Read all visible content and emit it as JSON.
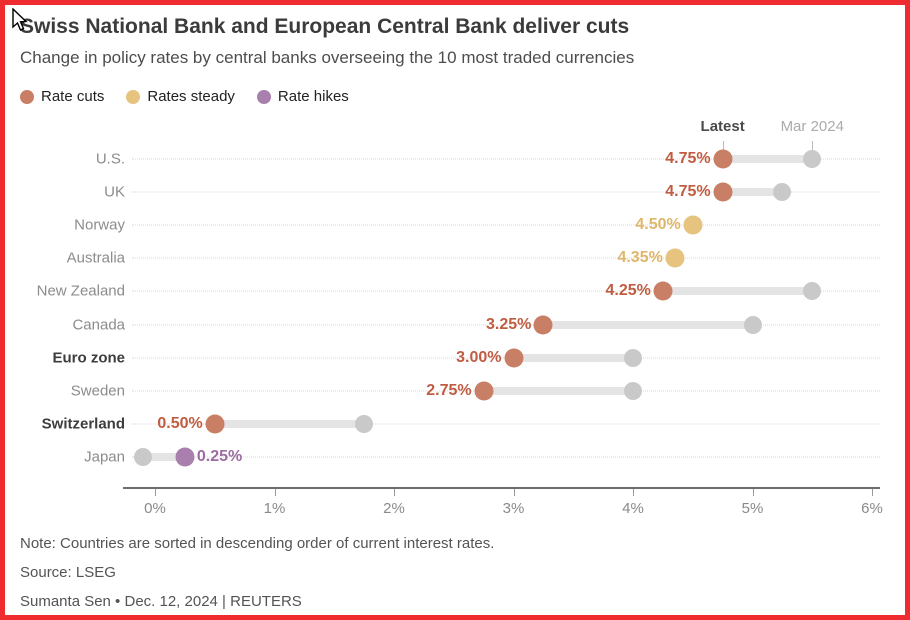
{
  "header": {
    "title": "Swiss National Bank and European Central Bank deliver cuts",
    "subtitle": "Change in policy rates by central banks overseeing the 10 most traded currencies"
  },
  "legend": [
    {
      "name": "rate-cuts-swatch",
      "label": "Rate cuts",
      "color": "#c97e66"
    },
    {
      "name": "rates-steady-swatch",
      "label": "Rates steady",
      "color": "#e6c480"
    },
    {
      "name": "rate-hikes-swatch",
      "label": "Rate hikes",
      "color": "#a97fad"
    }
  ],
  "chart_data": {
    "type": "dumbbell",
    "title": "Swiss National Bank and European Central Bank deliver cuts",
    "subtitle": "Change in policy rates by central banks overseeing the 10 most traded currencies",
    "col_headers": {
      "latest": "Latest",
      "previous": "Mar 2024"
    },
    "x_ticks": [
      "0%",
      "1%",
      "2%",
      "3%",
      "4%",
      "5%",
      "6%"
    ],
    "x_tick_values": [
      0,
      1,
      2,
      3,
      4,
      5,
      6
    ],
    "x_range": [
      0,
      6
    ],
    "grid": "dotted-horizontal",
    "legend_position": "top-left",
    "categories": [
      "U.S.",
      "UK",
      "Norway",
      "Australia",
      "New Zealand",
      "Canada",
      "Euro zone",
      "Sweden",
      "Switzerland",
      "Japan"
    ],
    "series": [
      {
        "name": "Latest",
        "values": [
          4.75,
          4.75,
          4.5,
          4.35,
          4.25,
          3.25,
          3.0,
          2.75,
          0.5,
          0.25
        ]
      },
      {
        "name": "Mar 2024",
        "values": [
          5.5,
          5.25,
          4.5,
          4.35,
          5.5,
          5.0,
          4.0,
          4.0,
          1.75,
          -0.1
        ]
      }
    ],
    "rows": [
      {
        "country": "U.S.",
        "bold": false,
        "latest": 4.75,
        "mar2024": 5.5,
        "status": "cut",
        "value_label": "4.75%",
        "label_side": "left"
      },
      {
        "country": "UK",
        "bold": false,
        "latest": 4.75,
        "mar2024": 5.25,
        "status": "cut",
        "value_label": "4.75%",
        "label_side": "left"
      },
      {
        "country": "Norway",
        "bold": false,
        "latest": 4.5,
        "mar2024": 4.5,
        "status": "steady",
        "value_label": "4.50%",
        "label_side": "left"
      },
      {
        "country": "Australia",
        "bold": false,
        "latest": 4.35,
        "mar2024": 4.35,
        "status": "steady",
        "value_label": "4.35%",
        "label_side": "left"
      },
      {
        "country": "New Zealand",
        "bold": false,
        "latest": 4.25,
        "mar2024": 5.5,
        "status": "cut",
        "value_label": "4.25%",
        "label_side": "left"
      },
      {
        "country": "Canada",
        "bold": false,
        "latest": 3.25,
        "mar2024": 5.0,
        "status": "cut",
        "value_label": "3.25%",
        "label_side": "left"
      },
      {
        "country": "Euro zone",
        "bold": true,
        "latest": 3.0,
        "mar2024": 4.0,
        "status": "cut",
        "value_label": "3.00%",
        "label_side": "left"
      },
      {
        "country": "Sweden",
        "bold": false,
        "latest": 2.75,
        "mar2024": 4.0,
        "status": "cut",
        "value_label": "2.75%",
        "label_side": "left"
      },
      {
        "country": "Switzerland",
        "bold": true,
        "latest": 0.5,
        "mar2024": 1.75,
        "status": "cut",
        "value_label": "0.50%",
        "label_side": "left"
      },
      {
        "country": "Japan",
        "bold": false,
        "latest": 0.25,
        "mar2024": -0.1,
        "status": "hike",
        "value_label": "0.25%",
        "label_side": "right"
      }
    ],
    "colors": {
      "cut_dot": "#c97e66",
      "cut_text": "#bf5c42",
      "steady_dot": "#e6c480",
      "steady_text": "#deb66c",
      "hike_dot": "#a97fad",
      "hike_text": "#9c6ba2",
      "gray_dot": "#c9c9c9",
      "connector": "#e4e4e4",
      "frame_border": "#ee2b2f"
    }
  },
  "footer": {
    "note": "Note: Countries are sorted in descending order of current interest rates.",
    "source": "Source: LSEG",
    "byline": "Sumanta Sen • Dec. 12, 2024 | REUTERS"
  }
}
